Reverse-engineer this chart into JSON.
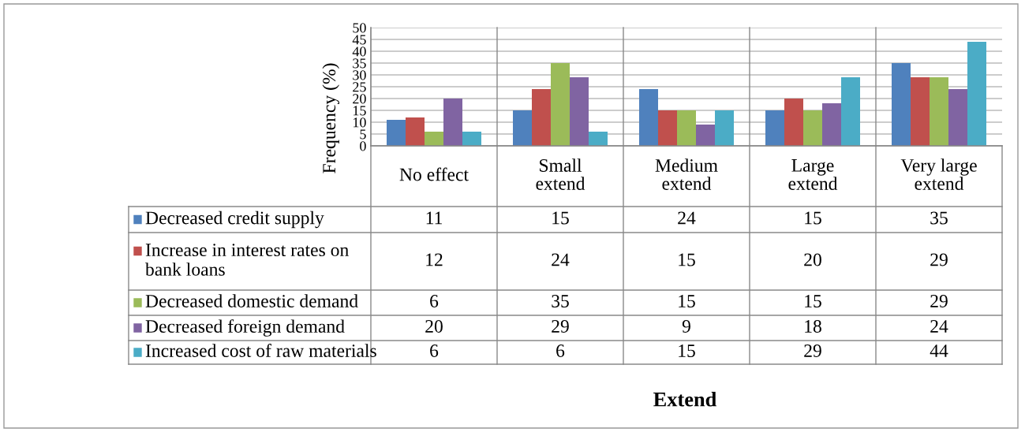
{
  "chart_data": {
    "type": "bar",
    "ylabel": "Frequency (%)",
    "annotations": [
      "Extend"
    ],
    "categories": [
      "No effect",
      "Small extend",
      "Medium extend",
      "Large extend",
      "Very large extend"
    ],
    "series": [
      {
        "name": "Decreased credit supply",
        "color": "#4f81bd",
        "values": [
          11,
          15,
          24,
          15,
          35
        ]
      },
      {
        "name": "Increase in interest rates on bank loans",
        "color": "#c0504d",
        "values": [
          12,
          24,
          15,
          20,
          29
        ]
      },
      {
        "name": "Decreased domestic demand",
        "color": "#9bbb59",
        "values": [
          6,
          35,
          15,
          15,
          29
        ]
      },
      {
        "name": "Decreased foreign demand",
        "color": "#8064a2",
        "values": [
          20,
          29,
          9,
          18,
          24
        ]
      },
      {
        "name": "Increased cost of raw materials",
        "color": "#4bacc6",
        "values": [
          6,
          6,
          15,
          29,
          44
        ]
      }
    ],
    "ylim": [
      0,
      50
    ],
    "yticks": [
      0,
      5,
      10,
      15,
      20,
      25,
      30,
      35,
      40,
      45,
      50
    ],
    "grid": "y",
    "data_labels": true,
    "legend": "bottom left"
  }
}
